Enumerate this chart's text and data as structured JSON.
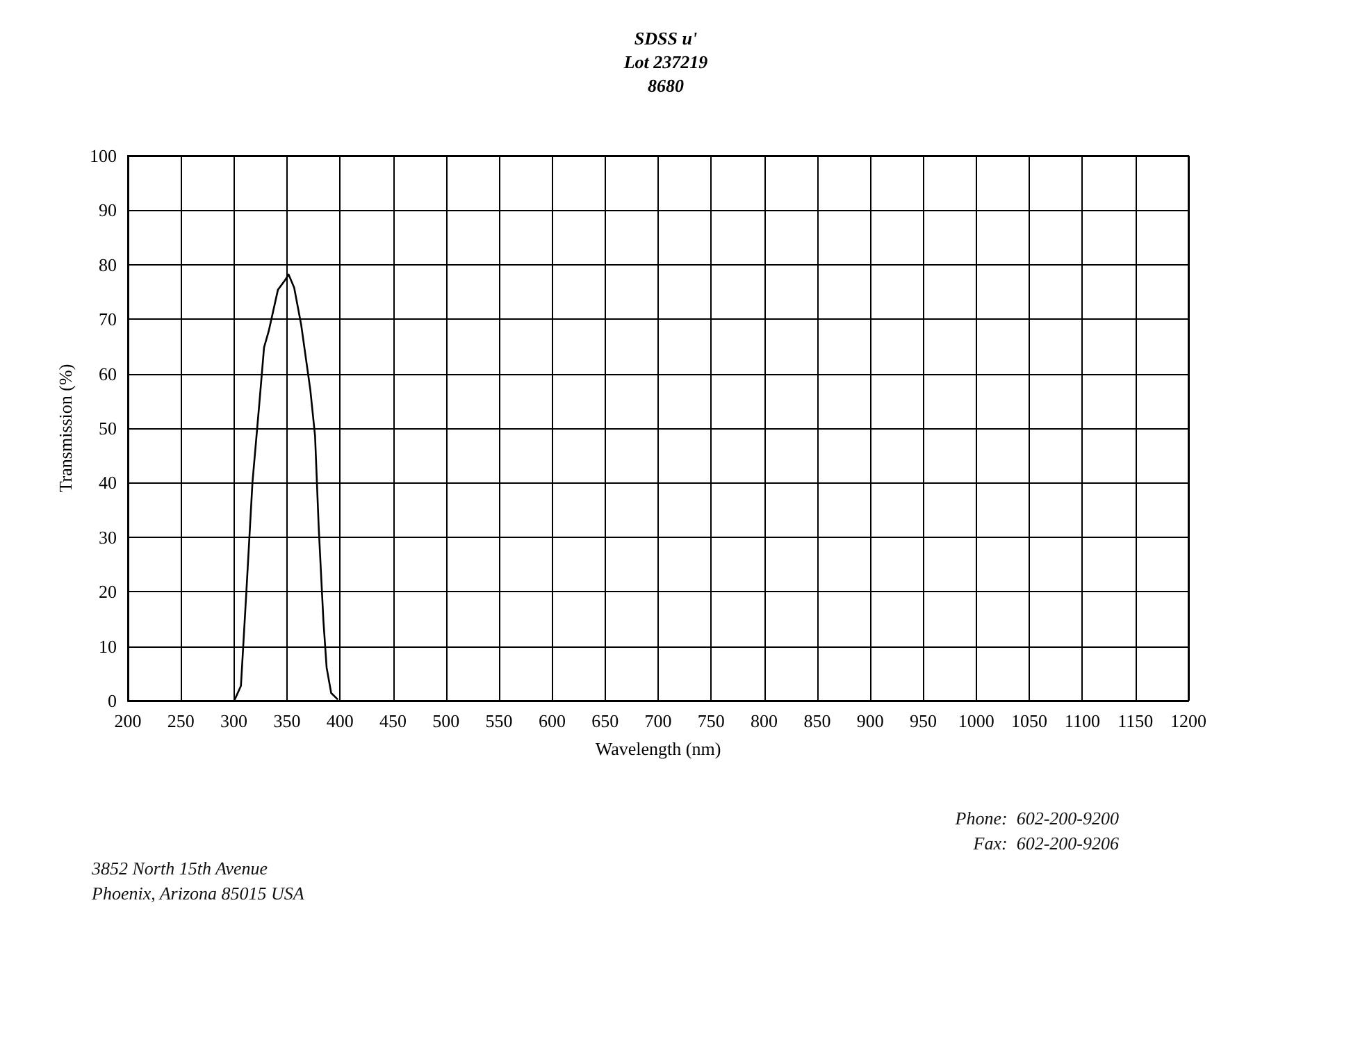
{
  "chart_data": {
    "type": "line",
    "title": "SDSS u'\nLot 237219\n8680",
    "xlabel": "Wavelength (nm)",
    "ylabel": "Transmission (%)",
    "x": [
      301,
      306.6,
      311.8,
      317.5,
      324,
      328.4,
      332.8,
      341.5,
      348,
      351.6,
      356.8,
      363.4,
      372,
      376.5,
      380,
      384.4,
      387.4,
      391.7,
      397.5
    ],
    "series": [
      {
        "color": "#000000",
        "values": [
          0.3,
          2.7,
          20.2,
          40.1,
          54.6,
          64.8,
          67.8,
          75.4,
          77.1,
          78.2,
          75.8,
          69,
          57.1,
          48.6,
          31.6,
          14.6,
          6.1,
          1.4,
          0.3
        ]
      }
    ],
    "xlim": [
      200,
      1200
    ],
    "xticks": [
      200,
      250,
      300,
      350,
      400,
      450,
      500,
      550,
      600,
      650,
      700,
      750,
      800,
      850,
      900,
      950,
      1000,
      1050,
      1100,
      1150,
      1200
    ],
    "ylim": [
      0,
      100
    ],
    "yticks": [
      0,
      10,
      20,
      30,
      40,
      50,
      60,
      70,
      80,
      90,
      100
    ],
    "grid": true,
    "marker": "none",
    "line_style": "solid",
    "annotations": [
      "3852 North 15th Avenue",
      "Phoenix, Arizona 85015 USA",
      "Phone:  602-200-9200",
      "Fax:  602-200-9206"
    ]
  }
}
